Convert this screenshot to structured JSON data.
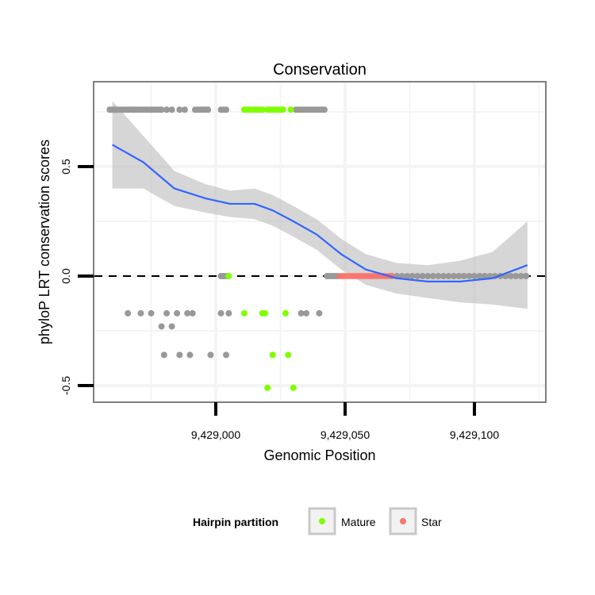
{
  "chart_data": {
    "type": "scatter",
    "title": "Conservation",
    "xlabel": "Genomic Position",
    "ylabel": "phyloP LRT conservation scores",
    "xlim": [
      9428953,
      9429128
    ],
    "ylim": [
      -0.55,
      0.8
    ],
    "x_ticks": [
      {
        "value": 9429000,
        "label": "9,429,000"
      },
      {
        "value": 9429050,
        "label": "9,429,050"
      },
      {
        "value": 9429100,
        "label": "9,429,100"
      }
    ],
    "y_ticks": [
      {
        "value": -0.5,
        "label": "-0.5"
      },
      {
        "value": 0,
        "label": "0.0"
      },
      {
        "value": 0.5,
        "label": "0.5"
      }
    ],
    "reference_line": 0,
    "colors": {
      "other": "#999999",
      "Mature": "#7FFF00",
      "Star": "#F8766D",
      "smooth": "#3366FF",
      "band": "#BBBBBB"
    },
    "legend": {
      "title": "Hairpin partition",
      "entries": [
        "Mature",
        "Star"
      ],
      "placement": "bottom"
    },
    "series": [
      {
        "name": "other",
        "points": [
          {
            "y": 0.76,
            "x_offsets": [
              -41,
              -40,
              -39,
              -38,
              -37,
              -36,
              -35,
              -34,
              -33,
              -32,
              -31,
              -30,
              -29,
              -28,
              -27,
              -26,
              -25,
              -24,
              -23,
              -22,
              -21,
              -19,
              -17,
              -14,
              -12,
              -8,
              -7,
              -6,
              -5,
              -4,
              -3,
              2,
              3,
              4,
              31,
              32,
              33,
              34,
              35,
              36,
              37,
              38,
              39,
              40,
              41,
              42
            ]
          },
          {
            "y": 0,
            "x_offsets": [
              2,
              3,
              4,
              43,
              44,
              45,
              46,
              47,
              68,
              70,
              72,
              74,
              76,
              78,
              80,
              82,
              84,
              86,
              88,
              90,
              92,
              94,
              96,
              98,
              100,
              102,
              104,
              106,
              108,
              110,
              112,
              114,
              116,
              118,
              120
            ]
          },
          {
            "y": -0.17,
            "x_offsets": [
              -34,
              -29,
              -25,
              -19,
              -15,
              -11,
              -9,
              2,
              5,
              33,
              35,
              40
            ]
          },
          {
            "y": -0.23,
            "x_offsets": [
              -21,
              -17
            ]
          },
          {
            "y": -0.36,
            "x_offsets": [
              -20,
              -14,
              -10,
              -2,
              4
            ]
          }
        ]
      },
      {
        "name": "Mature",
        "points": [
          {
            "y": 0.76,
            "x_offsets": [
              11,
              12,
              13,
              14,
              15,
              16,
              17,
              18,
              20,
              21,
              22,
              23,
              24,
              25,
              26,
              29
            ]
          },
          {
            "y": 0,
            "x_offsets": [
              5
            ]
          },
          {
            "y": -0.17,
            "x_offsets": [
              11,
              18,
              19,
              27
            ]
          },
          {
            "y": -0.36,
            "x_offsets": [
              22,
              28
            ]
          },
          {
            "y": -0.51,
            "x_offsets": [
              20,
              30
            ]
          }
        ]
      },
      {
        "name": "Star",
        "points": [
          {
            "y": 0,
            "x_offsets": [
              48,
              49,
              50,
              51,
              52,
              53,
              54,
              55,
              56,
              57,
              58,
              59,
              60,
              61,
              62,
              63,
              64,
              65,
              66,
              67,
              68
            ]
          }
        ]
      }
    ],
    "x_offset_base": 9429000,
    "smooth": {
      "x_offsets": [
        -40,
        -28,
        -16,
        -4,
        5.5,
        15,
        22,
        30,
        39,
        48.5,
        58,
        70,
        82,
        94.5,
        107,
        120.5
      ],
      "y": [
        0.6,
        0.52,
        0.4,
        0.355,
        0.33,
        0.33,
        0.3,
        0.25,
        0.19,
        0.1,
        0.03,
        -0.01,
        -0.025,
        -0.025,
        -0.01,
        0.05
      ],
      "lower": [
        0.4,
        0.4,
        0.32,
        0.29,
        0.27,
        0.26,
        0.23,
        0.18,
        0.12,
        0.03,
        -0.04,
        -0.08,
        -0.1,
        -0.12,
        -0.13,
        -0.15
      ],
      "upper": [
        0.8,
        0.64,
        0.48,
        0.42,
        0.39,
        0.4,
        0.37,
        0.32,
        0.26,
        0.17,
        0.1,
        0.06,
        0.05,
        0.07,
        0.11,
        0.25
      ]
    }
  }
}
